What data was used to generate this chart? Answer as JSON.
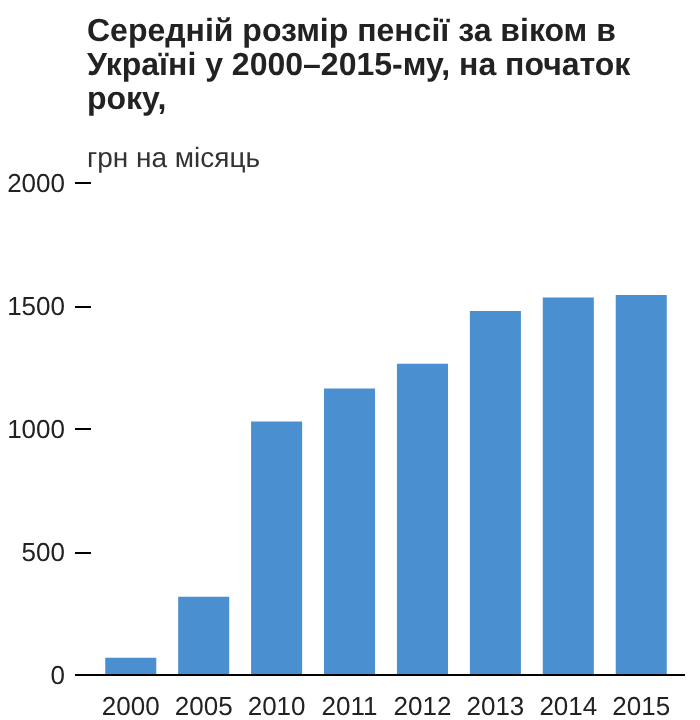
{
  "chart_data": {
    "type": "bar",
    "title": "Середній розмір пенсії за віком в Україні у 2000–2015-му, на початок року,",
    "subtitle": "грн на місяць",
    "categories": [
      "2000",
      "2005",
      "2010",
      "2011",
      "2012",
      "2013",
      "2014",
      "2015"
    ],
    "values": [
      70,
      318,
      1030,
      1165,
      1265,
      1480,
      1535,
      1545
    ],
    "color": "#4a8fd0",
    "ylim": [
      0,
      2000
    ],
    "yticks": [
      0,
      500,
      1000,
      1500,
      2000
    ],
    "grid": false
  }
}
